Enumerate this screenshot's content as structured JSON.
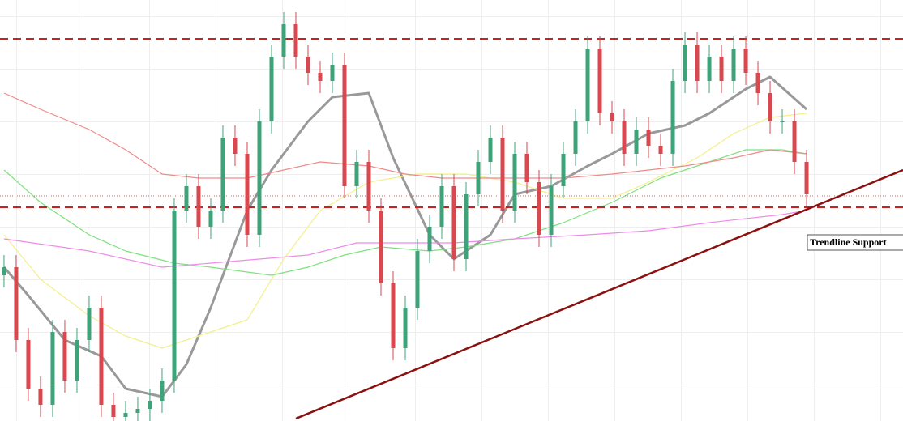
{
  "chart_data": {
    "type": "candlestick",
    "annotation": "Trendline Support",
    "up_color": "#3fa37a",
    "down_color": "#d9474f",
    "xlim": [
      -0.33,
      73.93
    ],
    "ylim": [
      0,
      104
    ],
    "open": [
      36,
      38,
      20,
      8,
      4,
      22,
      10,
      20,
      28,
      4,
      1,
      2,
      3,
      5,
      10,
      52,
      58,
      48,
      52,
      70,
      66,
      46,
      74,
      90,
      98,
      90,
      86,
      84,
      88,
      58,
      64,
      52,
      34,
      18,
      28,
      42,
      48,
      58,
      40,
      56,
      64,
      70,
      52,
      66,
      59,
      46,
      58,
      66,
      74,
      92,
      76,
      74,
      66,
      72,
      68,
      66,
      84,
      93,
      84,
      90,
      84,
      92,
      86,
      81,
      74,
      74,
      64
    ],
    "close": [
      38,
      20,
      8,
      4,
      22,
      10,
      20,
      28,
      4,
      1,
      2,
      3,
      5,
      10,
      52,
      58,
      48,
      52,
      70,
      66,
      46,
      74,
      90,
      98,
      90,
      86,
      84,
      88,
      58,
      64,
      52,
      34,
      18,
      28,
      42,
      48,
      58,
      40,
      56,
      64,
      70,
      52,
      66,
      59,
      46,
      58,
      66,
      74,
      92,
      76,
      74,
      66,
      72,
      68,
      66,
      84,
      93,
      84,
      90,
      84,
      92,
      86,
      81,
      74,
      74,
      64,
      56
    ],
    "high": [
      41,
      41,
      23,
      11,
      25,
      25,
      23,
      31,
      31,
      7,
      5,
      6,
      8,
      13,
      55,
      61,
      61,
      55,
      73,
      73,
      69,
      77,
      93,
      101,
      101,
      93,
      89,
      91,
      91,
      67,
      67,
      55,
      37,
      31,
      45,
      51,
      61,
      61,
      59,
      67,
      73,
      73,
      69,
      69,
      62,
      61,
      69,
      77,
      95,
      95,
      79,
      77,
      75,
      75,
      71,
      87,
      96,
      96,
      93,
      93,
      95,
      95,
      89,
      84,
      77,
      77,
      67
    ],
    "low": [
      33,
      17,
      5,
      1,
      1,
      7,
      7,
      17,
      1,
      -2,
      -2,
      -1,
      0,
      2,
      7,
      49,
      45,
      45,
      49,
      63,
      43,
      43,
      71,
      87,
      87,
      83,
      81,
      81,
      55,
      55,
      49,
      31,
      15,
      15,
      25,
      39,
      45,
      37,
      37,
      53,
      61,
      49,
      49,
      56,
      43,
      43,
      55,
      63,
      71,
      73,
      71,
      63,
      63,
      65,
      63,
      63,
      81,
      81,
      81,
      81,
      81,
      83,
      78,
      71,
      71,
      61,
      53
    ],
    "lines": [
      {
        "color": "#999999",
        "width": 3,
        "x": [
          0,
          2,
          5,
          8,
          10,
          13,
          15,
          17,
          20,
          22,
          25,
          27,
          30,
          32,
          35,
          37,
          40,
          42,
          45,
          48,
          50,
          53,
          56,
          58,
          61,
          63,
          66
        ],
        "values": [
          38,
          31,
          20,
          16,
          8,
          6,
          14,
          28,
          52,
          62,
          74,
          80,
          81,
          65,
          46,
          40,
          46,
          56,
          58,
          63,
          66,
          71,
          73,
          76,
          82,
          85,
          77
        ]
      },
      {
        "color": "#f3ef8a",
        "width": 1.2,
        "x": [
          0,
          3,
          7,
          10,
          13,
          17,
          20,
          23,
          26,
          30,
          34,
          38,
          42,
          46,
          50,
          53,
          57,
          60,
          63,
          66
        ],
        "values": [
          46,
          35,
          26,
          21,
          18,
          22,
          25,
          40,
          52,
          59,
          61,
          61,
          59,
          55,
          55,
          59,
          65,
          71,
          75,
          76
        ]
      },
      {
        "color": "#7fe07f",
        "width": 1.2,
        "x": [
          0,
          3,
          7,
          10,
          14,
          17,
          22,
          25,
          28,
          31,
          35,
          38,
          42,
          46,
          50,
          54,
          58,
          61,
          64,
          66
        ],
        "values": [
          62,
          54,
          46,
          42,
          39,
          38,
          36,
          38,
          41,
          43,
          42,
          43,
          45,
          49,
          54,
          60,
          64,
          67,
          67,
          66
        ]
      },
      {
        "color": "#f08a8a",
        "width": 1.2,
        "x": [
          0,
          3,
          7,
          10,
          13,
          16,
          20,
          23,
          26,
          30,
          33,
          36,
          40,
          43,
          46,
          50,
          53,
          56,
          60,
          63,
          66
        ],
        "values": [
          81,
          77,
          72,
          67,
          61,
          60,
          60,
          62,
          64,
          63,
          61,
          60,
          60,
          60,
          60,
          61,
          62,
          63,
          65,
          67,
          66
        ]
      },
      {
        "color": "#ee8be8",
        "width": 1.2,
        "x": [
          0,
          7,
          13,
          17,
          21,
          25,
          29,
          33,
          37,
          42,
          48,
          53,
          58,
          64,
          66
        ],
        "values": [
          45,
          42,
          38,
          39,
          40,
          41,
          44,
          44,
          44,
          45,
          46,
          47,
          49,
          51,
          52
        ]
      }
    ],
    "levels": [
      {
        "value": 94.4,
        "color": "#cc1f1f",
        "style": "dashed"
      },
      {
        "value": 52.8,
        "color": "#cc1f1f",
        "style": "dashed"
      },
      {
        "value": 55.6,
        "color": "#cc6666",
        "style": "dotted"
      }
    ],
    "trendline": {
      "color": "#8b1010",
      "x": [
        24,
        73.93
      ],
      "values": [
        0.6,
        62
      ]
    }
  }
}
